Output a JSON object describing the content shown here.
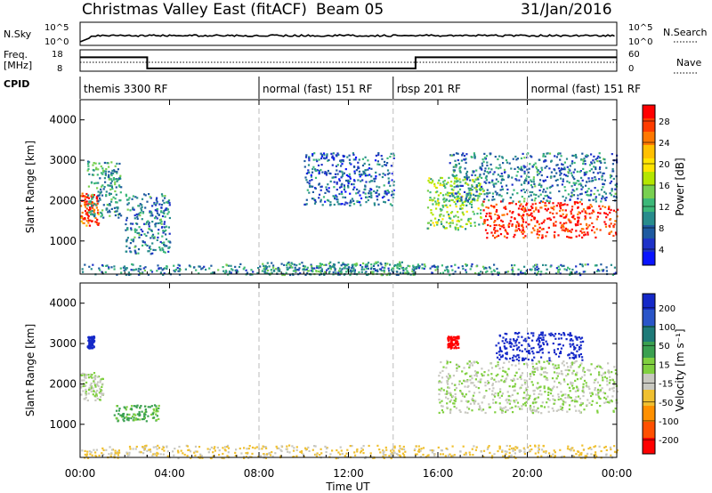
{
  "header": {
    "station": "Christmas Valley East (fitACF)",
    "beam": "Beam 05",
    "date": "31/Jan/2016"
  },
  "nsky_panel": {
    "label": "N.Sky",
    "left_ticks": [
      "10^5",
      "10^0"
    ],
    "right_ticks": [
      "10^5",
      "10^0"
    ],
    "right_label": "N.Search"
  },
  "freq_panel": {
    "label_line1": "Freq.",
    "label_line2": "[MHz]",
    "left_ticks": [
      "18",
      "8"
    ],
    "right_ticks": [
      "60",
      "0"
    ],
    "right_label": "Nave",
    "freq_segments_mhz": [
      {
        "from_h": 0.0,
        "to_h": 3.0,
        "value": 14.5
      },
      {
        "from_h": 3.0,
        "to_h": 15.0,
        "value": 9.3
      },
      {
        "from_h": 15.0,
        "to_h": 24.0,
        "value": 14.5
      }
    ]
  },
  "cpid": {
    "label": "CPID",
    "segments": [
      {
        "start_h": 0.0,
        "label": "themis 3300 RF"
      },
      {
        "start_h": 8.0,
        "label": "normal (fast) 151 RF"
      },
      {
        "start_h": 14.0,
        "label": "rbsp 201 RF"
      },
      {
        "start_h": 20.0,
        "label": "normal (fast) 151 RF"
      }
    ]
  },
  "axes": {
    "y_label": "Slant Range [km]",
    "y_ticks": [
      "1000",
      "2000",
      "3000",
      "4000"
    ],
    "x_label": "Time UT",
    "x_ticks": [
      "00:00",
      "04:00",
      "08:00",
      "12:00",
      "16:00",
      "20:00",
      "00:00"
    ]
  },
  "power_colorbar": {
    "label": "Power [dB]",
    "ticks": [
      "28",
      "24",
      "20",
      "16",
      "12",
      "8",
      "4"
    ],
    "colors": [
      "#ff0000",
      "#ff3c00",
      "#ff7800",
      "#ffc000",
      "#ffe400",
      "#b4e600",
      "#78d050",
      "#3cb878",
      "#288c8c",
      "#1e5aa0",
      "#1e32c8",
      "#0a14ff"
    ]
  },
  "velocity_colorbar": {
    "label": "Velocity [m s⁻¹]",
    "ticks": [
      "200",
      "100",
      "50",
      "15",
      "-15",
      "-50",
      "-100",
      "-200"
    ],
    "colors": [
      "#1428c8",
      "#2a55c8",
      "#1e7a78",
      "#3aa050",
      "#80d040",
      "#c8c8c0",
      "#f0c030",
      "#ff9000",
      "#ff5000",
      "#ff0000"
    ]
  },
  "chart_data": {
    "type": "heatmap",
    "title": "Christmas Valley East (fitACF) Beam 05",
    "xlabel": "Time UT",
    "ylabel": "Slant Range [km]",
    "xlim_hours": [
      0,
      24
    ],
    "ylim_km": [
      180,
      4500
    ],
    "panels": [
      {
        "name": "Power",
        "unit": "dB",
        "colorbar_range": [
          0,
          30
        ],
        "echo_regions": [
          {
            "t0": 0.0,
            "t1": 0.8,
            "r0": 1400,
            "r1": 2200,
            "value": 26
          },
          {
            "t0": 0.3,
            "t1": 1.8,
            "r0": 1600,
            "r1": 3000,
            "value": 10
          },
          {
            "t0": 2.0,
            "t1": 4.0,
            "r0": 700,
            "r1": 2200,
            "value": 8
          },
          {
            "t0": 0.0,
            "t1": 24.0,
            "r0": 180,
            "r1": 450,
            "value": 8
          },
          {
            "t0": 8.0,
            "t1": 15.0,
            "r0": 180,
            "r1": 500,
            "value": 10
          },
          {
            "t0": 10.0,
            "t1": 14.0,
            "r0": 1900,
            "r1": 3200,
            "value": 6
          },
          {
            "t0": 15.5,
            "t1": 18.0,
            "r0": 1300,
            "r1": 2600,
            "value": 14
          },
          {
            "t0": 18.0,
            "t1": 24.0,
            "r0": 1100,
            "r1": 2000,
            "value": 28
          },
          {
            "t0": 16.5,
            "t1": 24.0,
            "r0": 2000,
            "r1": 3200,
            "value": 8
          }
        ]
      },
      {
        "name": "Velocity",
        "unit": "m s-1",
        "colorbar_range": [
          -200,
          200
        ],
        "echo_regions": [
          {
            "t0": 0.0,
            "t1": 1.0,
            "r0": 1600,
            "r1": 2300,
            "value": 0
          },
          {
            "t0": 0.3,
            "t1": 0.6,
            "r0": 2900,
            "r1": 3200,
            "value": 200
          },
          {
            "t0": 1.5,
            "t1": 3.5,
            "r0": 1100,
            "r1": 1500,
            "value": 50
          },
          {
            "t0": 0.0,
            "t1": 24.0,
            "r0": 180,
            "r1": 500,
            "value": -50
          },
          {
            "t0": 16.0,
            "t1": 24.0,
            "r0": 1300,
            "r1": 2600,
            "value": 0
          },
          {
            "t0": 16.4,
            "t1": 16.9,
            "r0": 2900,
            "r1": 3200,
            "value": -200
          },
          {
            "t0": 18.5,
            "t1": 22.5,
            "r0": 2600,
            "r1": 3300,
            "value": 200
          }
        ]
      }
    ]
  }
}
